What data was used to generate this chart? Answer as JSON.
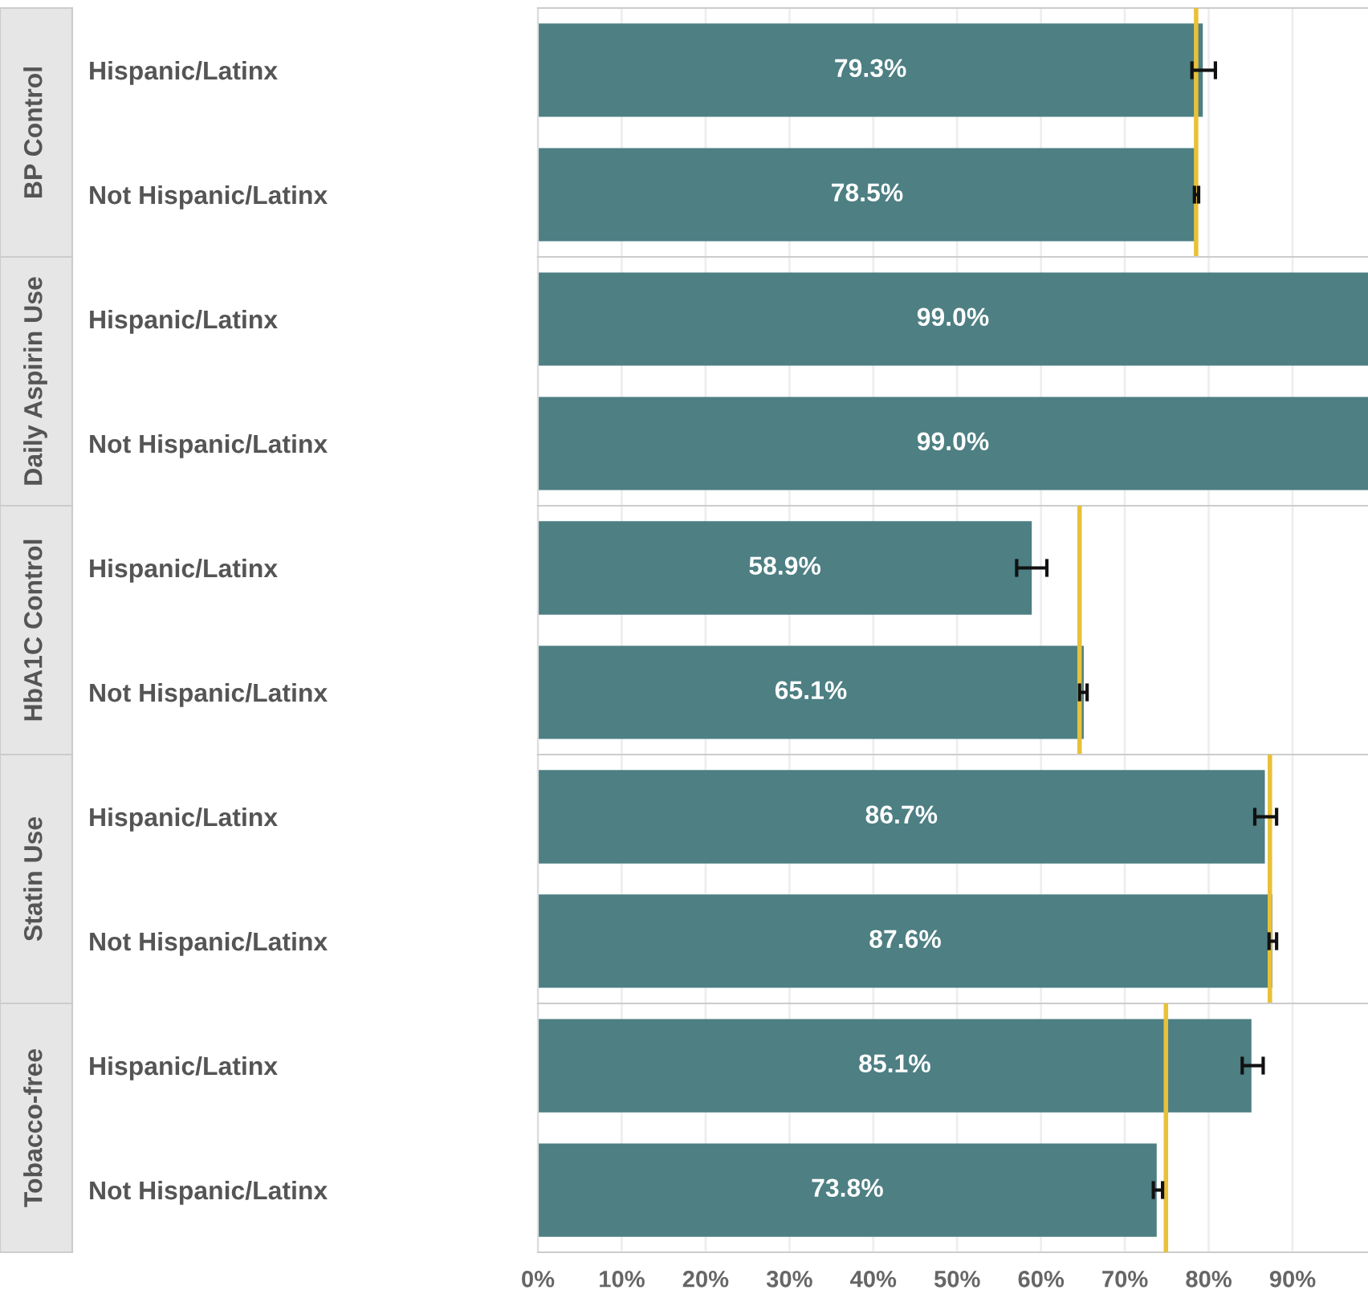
{
  "chart_data": [
    {
      "type": "bar",
      "orientation": "horizontal",
      "title": "BP Control",
      "categories": [
        "Hispanic/Latinx",
        "Not Hispanic/Latinx"
      ],
      "values": [
        79.3,
        78.5
      ],
      "value_labels": [
        "79.3%",
        "78.5%"
      ],
      "errors": [
        [
          78.0,
          80.8
        ],
        [
          78.3,
          78.8
        ]
      ],
      "color": "#4d7f83",
      "ref_lines": [
        {
          "axis": "x",
          "value": 78.5,
          "color": "#e8c13a"
        }
      ],
      "xlim": [
        0,
        99
      ],
      "grid": "x",
      "tick_labels": "y"
    },
    {
      "type": "bar",
      "orientation": "horizontal",
      "title": "Daily Aspirin Use",
      "categories": [
        "Hispanic/Latinx",
        "Not Hispanic/Latinx"
      ],
      "values": [
        99.0,
        99.0
      ],
      "value_labels": [
        "99.0%",
        "99.0%"
      ],
      "color": "#4d7f83",
      "xlim": [
        0,
        99
      ],
      "grid": "x",
      "tick_labels": "y"
    },
    {
      "type": "bar",
      "orientation": "horizontal",
      "title": "HbA1C Control",
      "categories": [
        "Hispanic/Latinx",
        "Not Hispanic/Latinx"
      ],
      "values": [
        58.9,
        65.1
      ],
      "value_labels": [
        "58.9%",
        "65.1%"
      ],
      "errors": [
        [
          57.1,
          60.7
        ],
        [
          64.6,
          65.5
        ]
      ],
      "color": "#4d7f83",
      "ref_lines": [
        {
          "axis": "x",
          "value": 64.6,
          "color": "#e8c13a"
        }
      ],
      "xlim": [
        0,
        99
      ],
      "grid": "x",
      "tick_labels": "y"
    },
    {
      "type": "bar",
      "orientation": "horizontal",
      "title": "Statin Use",
      "categories": [
        "Hispanic/Latinx",
        "Not Hispanic/Latinx"
      ],
      "values": [
        86.7,
        87.6
      ],
      "value_labels": [
        "86.7%",
        "87.6%"
      ],
      "errors": [
        [
          85.5,
          88.1
        ],
        [
          87.2,
          88.1
        ]
      ],
      "color": "#4d7f83",
      "ref_lines": [
        {
          "axis": "x",
          "value": 87.3,
          "color": "#e8c13a"
        }
      ],
      "xlim": [
        0,
        99
      ],
      "grid": "x",
      "tick_labels": "y"
    },
    {
      "type": "bar",
      "orientation": "horizontal",
      "title": "Tobacco-free",
      "categories": [
        "Hispanic/Latinx",
        "Not Hispanic/Latinx"
      ],
      "values": [
        85.1,
        73.8
      ],
      "value_labels": [
        "85.1%",
        "73.8%"
      ],
      "errors": [
        [
          84.0,
          86.5
        ],
        [
          73.4,
          74.5
        ]
      ],
      "color": "#4d7f83",
      "ref_lines": [
        {
          "axis": "x",
          "value": 74.9,
          "color": "#e8c13a"
        }
      ],
      "xlim": [
        0,
        99
      ],
      "xticks": [
        {
          "value": 0,
          "label": "0%"
        },
        {
          "value": 10,
          "label": "10%"
        },
        {
          "value": 20,
          "label": "20%"
        },
        {
          "value": 30,
          "label": "30%"
        },
        {
          "value": 40,
          "label": "40%"
        },
        {
          "value": 50,
          "label": "50%"
        },
        {
          "value": 60,
          "label": "60%"
        },
        {
          "value": 70,
          "label": "70%"
        },
        {
          "value": 80,
          "label": "80%"
        },
        {
          "value": 90,
          "label": "90%"
        }
      ],
      "grid": "x"
    }
  ]
}
